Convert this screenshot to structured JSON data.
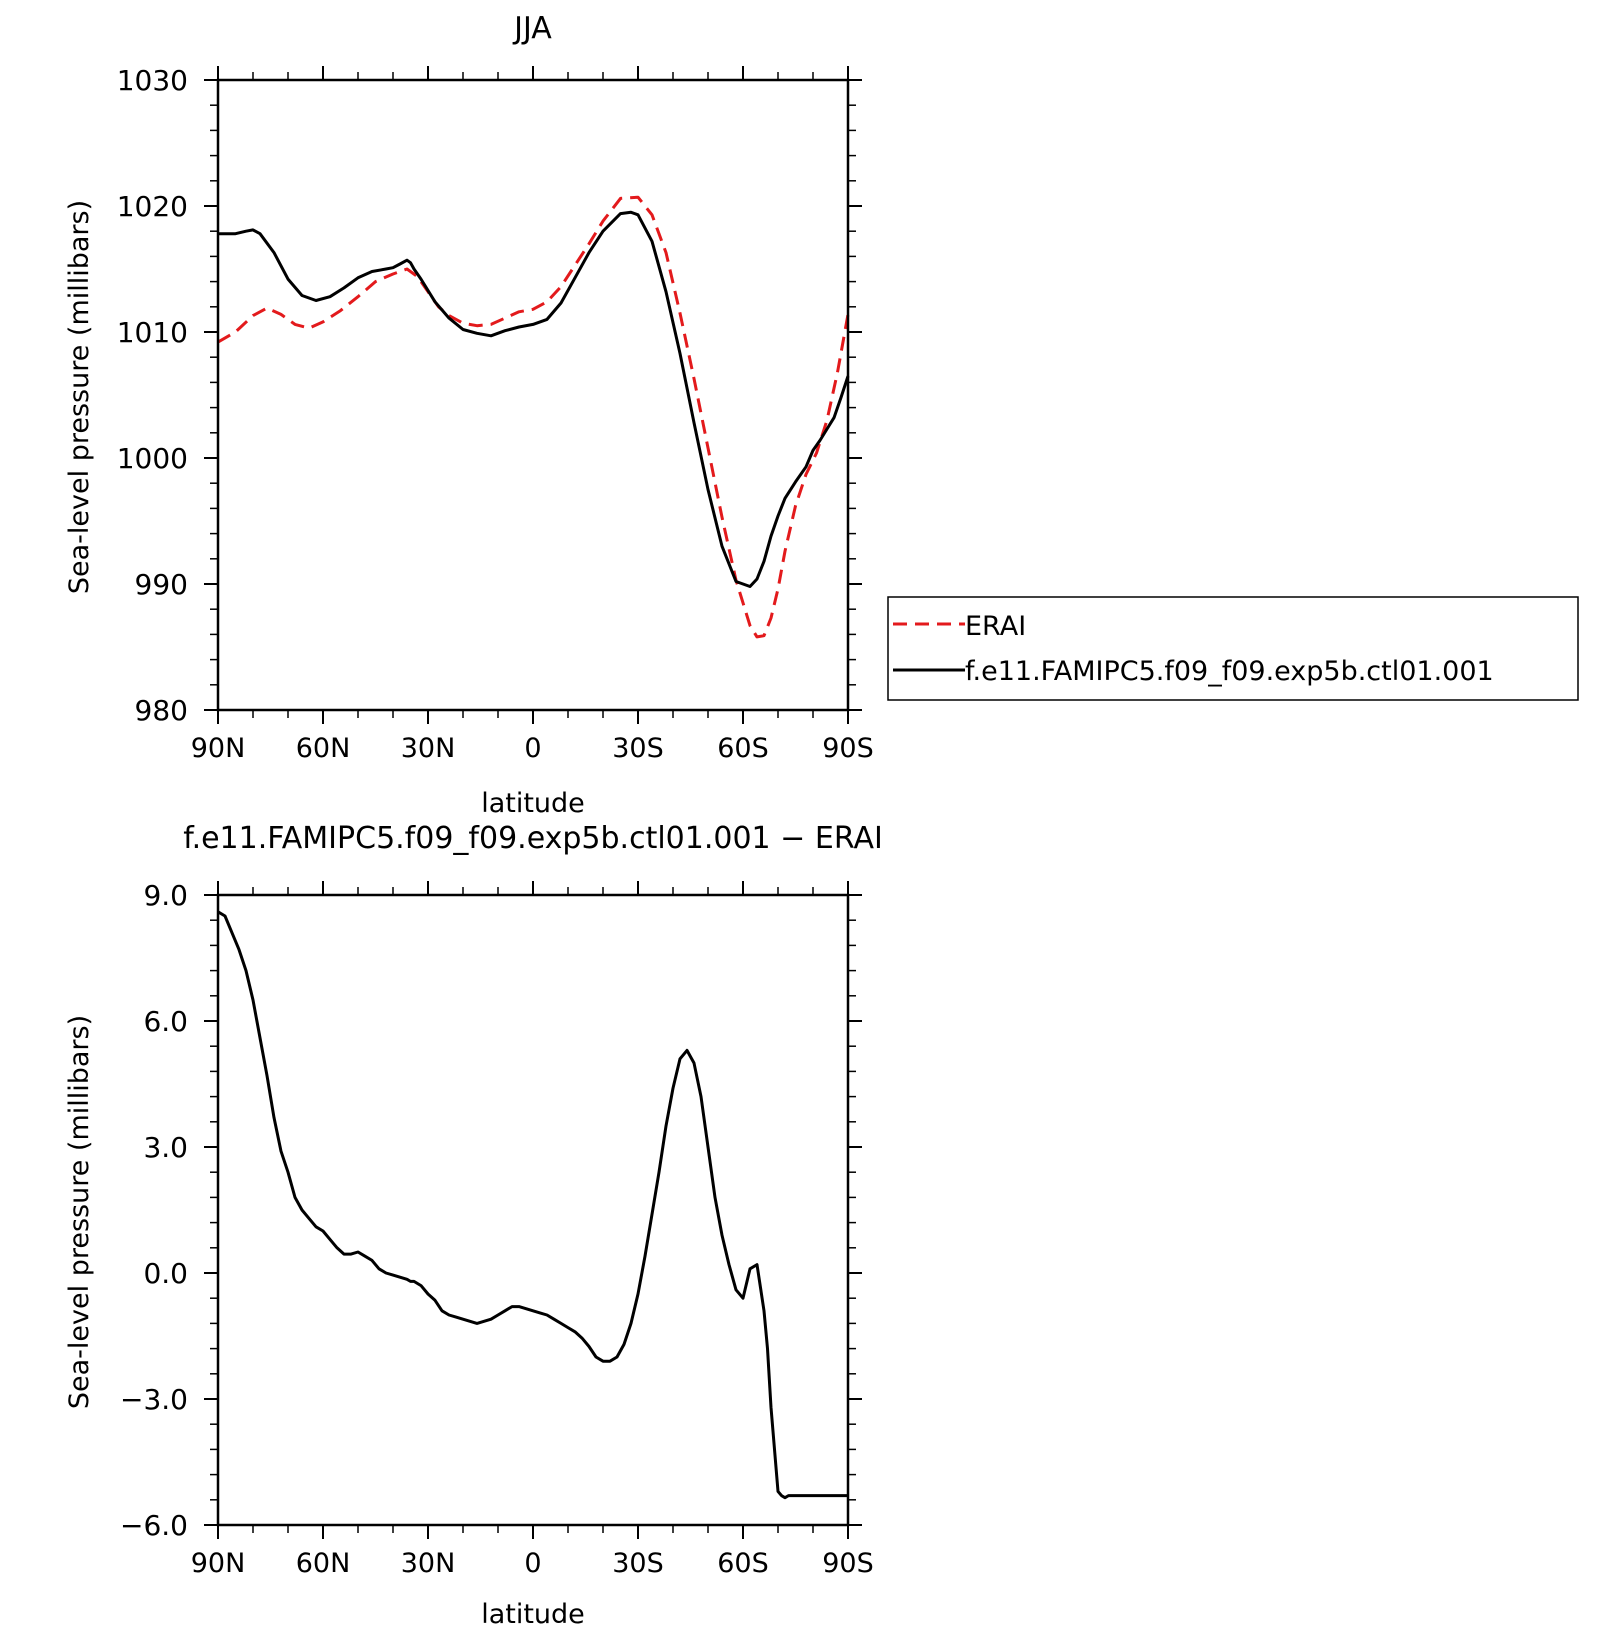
{
  "colors": {
    "erai": "#e31a1c",
    "model": "#000000",
    "frame": "#000000"
  },
  "chart_data": [
    {
      "type": "line",
      "title": "JJA",
      "xlabel": "latitude",
      "ylabel": "Sea-level pressure (millibars)",
      "xlim": [
        90,
        -90
      ],
      "ylim": [
        980,
        1030
      ],
      "yticks": [
        980,
        990,
        1000,
        1010,
        1020,
        1030
      ],
      "yticklabels": [
        "980",
        "990",
        "1000",
        "1010",
        "1020",
        "1030"
      ],
      "xticks": [
        90,
        60,
        30,
        0,
        -30,
        -60,
        -90
      ],
      "xticklabels": [
        "90N",
        "60N",
        "30N",
        "0",
        "30S",
        "60S",
        "90S"
      ],
      "legend": {
        "placement": "right",
        "entries": [
          "ERAI",
          "f.e11.FAMIPC5.f09_f09.exp5b.ctl01.001"
        ]
      },
      "series": [
        {
          "name": "ERAI",
          "style": "dashed",
          "color": "#e31a1c",
          "x": [
            90,
            85,
            80,
            76,
            72,
            68,
            64,
            60,
            55,
            50,
            45,
            40,
            36,
            33,
            30,
            27,
            24,
            20,
            16,
            12,
            8,
            4,
            0,
            -4,
            -8,
            -12,
            -16,
            -20,
            -25,
            -30,
            -34,
            -38,
            -42,
            -46,
            -50,
            -54,
            -58,
            -62,
            -64,
            -66,
            -68,
            -70,
            -72,
            -75,
            -78,
            -81,
            -84,
            -87,
            -90
          ],
          "values": [
            1009.2,
            1010.0,
            1011.3,
            1011.9,
            1011.4,
            1010.6,
            1010.3,
            1010.8,
            1011.7,
            1012.8,
            1014.0,
            1014.6,
            1015.0,
            1014.4,
            1013.2,
            1012.0,
            1011.3,
            1010.7,
            1010.5,
            1010.6,
            1011.1,
            1011.6,
            1011.8,
            1012.4,
            1013.6,
            1015.3,
            1017.0,
            1018.8,
            1020.6,
            1020.7,
            1019.3,
            1016.3,
            1011.5,
            1006.3,
            1000.8,
            995.3,
            990.3,
            986.7,
            985.8,
            985.9,
            987.3,
            989.6,
            992.6,
            996.2,
            998.7,
            1000.4,
            1003.0,
            1006.8,
            1011.4
          ]
        },
        {
          "name": "f.e11.FAMIPC5.f09_f09.exp5b.ctl01.001",
          "style": "solid",
          "color": "#000000",
          "x": [
            90,
            85,
            82,
            80,
            78,
            74,
            70,
            66,
            62,
            58,
            54,
            50,
            46,
            42,
            40,
            38,
            36,
            35,
            34,
            32,
            28,
            24,
            20,
            16,
            12,
            8,
            4,
            0,
            -4,
            -8,
            -12,
            -16,
            -20,
            -25,
            -28,
            -30,
            -34,
            -38,
            -42,
            -46,
            -50,
            -54,
            -58,
            -62,
            -64,
            -66,
            -68,
            -70,
            -72,
            -75,
            -78,
            -80,
            -82,
            -84,
            -86,
            -88,
            -90
          ],
          "values": [
            1017.8,
            1017.8,
            1018.0,
            1018.1,
            1017.8,
            1016.3,
            1014.2,
            1012.9,
            1012.5,
            1012.8,
            1013.5,
            1014.3,
            1014.8,
            1015.0,
            1015.1,
            1015.4,
            1015.7,
            1015.5,
            1015.0,
            1014.2,
            1012.4,
            1011.1,
            1010.2,
            1009.9,
            1009.7,
            1010.1,
            1010.4,
            1010.6,
            1011.0,
            1012.3,
            1014.3,
            1016.3,
            1018.0,
            1019.4,
            1019.5,
            1019.3,
            1017.2,
            1013.2,
            1008.3,
            1002.8,
            997.5,
            993.0,
            990.2,
            989.8,
            990.4,
            991.8,
            993.8,
            995.4,
            996.8,
            998.1,
            999.3,
            1000.6,
            1001.4,
            1002.3,
            1003.2,
            1004.8,
            1006.5
          ]
        }
      ]
    },
    {
      "type": "line",
      "title": "f.e11.FAMIPC5.f09_f09.exp5b.ctl01.001 − ERAI",
      "xlabel": "latitude",
      "ylabel": "Sea-level pressure (millibars)",
      "xlim": [
        90,
        -90
      ],
      "ylim": [
        -6,
        9
      ],
      "yticks": [
        -6,
        -3,
        0,
        3,
        6,
        9
      ],
      "yticklabels": [
        "−6.0",
        "−3.0",
        "0.0",
        "3.0",
        "6.0",
        "9.0"
      ],
      "xticks": [
        90,
        60,
        30,
        0,
        -30,
        -60,
        -90
      ],
      "xticklabels": [
        "90N",
        "60N",
        "30N",
        "0",
        "30S",
        "60S",
        "90S"
      ],
      "series": [
        {
          "style": "solid",
          "color": "#000000",
          "x": [
            90,
            88,
            86,
            84,
            82,
            80,
            78,
            76,
            74,
            72,
            70,
            68,
            66,
            64,
            62,
            60,
            58,
            56,
            54,
            52,
            50,
            48,
            46,
            44,
            42,
            40,
            38,
            36,
            35,
            34,
            32,
            30,
            28,
            26,
            24,
            22,
            20,
            18,
            16,
            14,
            12,
            10,
            8,
            6,
            4,
            2,
            0,
            -2,
            -4,
            -6,
            -8,
            -10,
            -12,
            -14,
            -16,
            -18,
            -20,
            -22,
            -24,
            -26,
            -28,
            -30,
            -32,
            -34,
            -36,
            -38,
            -40,
            -42,
            -44,
            -46,
            -48,
            -50,
            -52,
            -54,
            -56,
            -58,
            -60,
            -62,
            -64,
            -66,
            -67,
            -68,
            -69,
            -70,
            -71,
            -72,
            -73,
            -74,
            -75,
            -76,
            -77,
            -78,
            -79,
            -80,
            -81,
            -82,
            -83,
            -84,
            -85,
            -86,
            -87,
            -88,
            -89,
            -90
          ],
          "values": [
            8.6,
            8.5,
            8.1,
            7.7,
            7.2,
            6.5,
            5.6,
            4.7,
            3.7,
            2.9,
            2.4,
            1.8,
            1.5,
            1.3,
            1.1,
            1.0,
            0.8,
            0.6,
            0.45,
            0.45,
            0.5,
            0.4,
            0.3,
            0.1,
            0.0,
            -0.05,
            -0.1,
            -0.15,
            -0.2,
            -0.2,
            -0.3,
            -0.5,
            -0.65,
            -0.9,
            -1.0,
            -1.05,
            -1.1,
            -1.15,
            -1.2,
            -1.15,
            -1.1,
            -1.0,
            -0.9,
            -0.8,
            -0.8,
            -0.85,
            -0.9,
            -0.95,
            -1.0,
            -1.1,
            -1.2,
            -1.3,
            -1.4,
            -1.55,
            -1.75,
            -2.0,
            -2.1,
            -2.1,
            -2.0,
            -1.7,
            -1.2,
            -0.5,
            0.4,
            1.4,
            2.4,
            3.5,
            4.4,
            5.1,
            5.3,
            5.0,
            4.2,
            3.0,
            1.8,
            0.9,
            0.2,
            -0.4,
            -0.6,
            0.1,
            0.2,
            -0.9,
            -1.8,
            -3.2,
            -4.2,
            -5.2,
            -5.3,
            -5.35,
            -5.3,
            -5.3,
            -5.3,
            -5.3,
            -5.3,
            -5.3,
            -5.3,
            -5.3,
            -5.3,
            -5.3,
            -5.3,
            -5.3,
            -5.3,
            -5.3,
            -5.3,
            -5.3,
            -5.3,
            -5.3
          ],
          "_note_unused": ""
        }
      ]
    }
  ]
}
